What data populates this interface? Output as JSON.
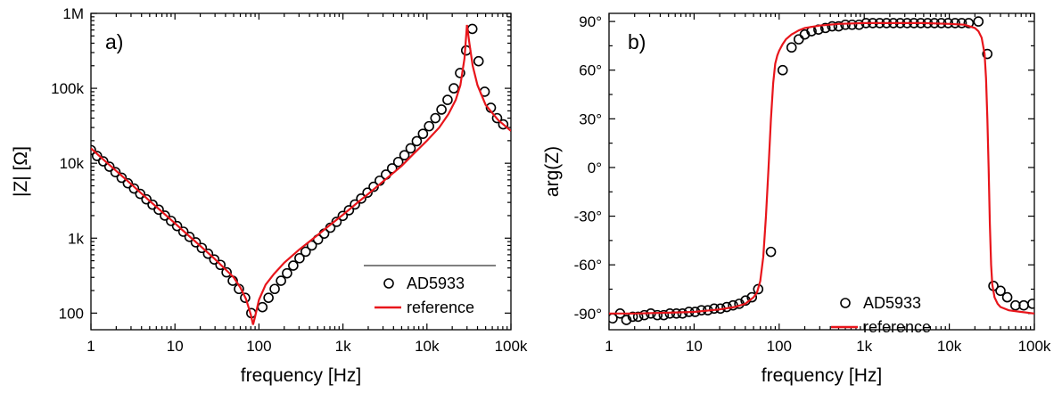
{
  "chart_data": [
    {
      "type": "scatter",
      "panel_label": "a)",
      "xlabel": "frequency [Hz]",
      "ylabel": "|Z| [Ω]",
      "x_scale": "log",
      "y_scale": "log",
      "xlim": [
        1,
        100000
      ],
      "ylim": [
        60,
        1000000
      ],
      "x_ticks": [
        {
          "value": 1,
          "label": "1"
        },
        {
          "value": 10,
          "label": "10"
        },
        {
          "value": 100,
          "label": "100"
        },
        {
          "value": 1000,
          "label": "1k"
        },
        {
          "value": 10000,
          "label": "10k"
        },
        {
          "value": 100000,
          "label": "100k"
        }
      ],
      "y_ticks": [
        {
          "value": 100,
          "label": "100"
        },
        {
          "value": 1000,
          "label": "1k"
        },
        {
          "value": 10000,
          "label": "10k"
        },
        {
          "value": 100000,
          "label": "100k"
        },
        {
          "value": 1000000,
          "label": "1M"
        }
      ],
      "grid": false,
      "legend_position": "bottom-right",
      "colors": {
        "markers": "#000000",
        "reference": "#e8151b"
      },
      "series": [
        {
          "name": "AD5933",
          "style": "open-circles",
          "x": [
            1.0,
            1.18,
            1.4,
            1.66,
            1.96,
            2.32,
            2.75,
            3.26,
            3.86,
            4.57,
            5.41,
            6.41,
            7.59,
            8.99,
            10.6,
            12.6,
            14.9,
            17.7,
            20.9,
            24.8,
            29.4,
            34.8,
            41.2,
            48.8,
            57.8,
            68.5,
            81.1,
            110,
            130,
            154,
            183,
            216,
            256,
            304,
            360,
            426,
            505,
            598,
            708,
            839,
            994,
            1180,
            1390,
            1650,
            1960,
            2320,
            2740,
            3250,
            3850,
            4560,
            5400,
            6390,
            7570,
            8970,
            10600,
            12600,
            14900,
            17600,
            20900,
            24800,
            29300,
            34700,
            41200,
            48700,
            57700,
            68400,
            81000
          ],
          "y": [
            15000,
            12500,
            10600,
            9000,
            7600,
            6400,
            5400,
            4600,
            3900,
            3300,
            2800,
            2400,
            2000,
            1700,
            1450,
            1220,
            1040,
            880,
            740,
            620,
            520,
            440,
            350,
            270,
            210,
            160,
            100,
            120,
            160,
            210,
            270,
            340,
            430,
            540,
            660,
            800,
            960,
            1150,
            1380,
            1650,
            1980,
            2360,
            2820,
            3380,
            4050,
            4850,
            5850,
            7050,
            8550,
            10400,
            12800,
            15800,
            19700,
            24700,
            31200,
            40000,
            52000,
            70000,
            100000,
            160000,
            320000,
            620000,
            230000,
            90000,
            55000,
            40000,
            33000
          ]
        },
        {
          "name": "reference",
          "style": "line",
          "x": [
            1,
            1.5,
            2,
            3,
            5,
            7,
            10,
            15,
            20,
            30,
            50,
            60,
            70,
            80,
            85,
            90,
            100,
            120,
            150,
            200,
            300,
            500,
            700,
            1000,
            1500,
            2000,
            3000,
            5000,
            7000,
            10000,
            14000,
            18000,
            22000,
            25000,
            28000,
            30000,
            32000,
            35000,
            40000,
            50000,
            70000,
            100000
          ],
          "y": [
            15800,
            10500,
            7900,
            5300,
            3150,
            2250,
            1580,
            1050,
            790,
            525,
            300,
            220,
            155,
            95,
            70,
            90,
            150,
            240,
            330,
            470,
            700,
            1100,
            1500,
            2050,
            3000,
            3900,
            5700,
            9200,
            13500,
            20000,
            30000,
            45000,
            70000,
            110000,
            250000,
            700000,
            400000,
            200000,
            110000,
            60000,
            38000,
            27000
          ]
        }
      ]
    },
    {
      "type": "scatter",
      "panel_label": "b)",
      "xlabel": "frequency [Hz]",
      "ylabel": "arg(Z)",
      "x_scale": "log",
      "y_scale": "linear",
      "xlim": [
        1,
        100000
      ],
      "ylim": [
        -100,
        95
      ],
      "x_ticks": [
        {
          "value": 1,
          "label": "1"
        },
        {
          "value": 10,
          "label": "10"
        },
        {
          "value": 100,
          "label": "100"
        },
        {
          "value": 1000,
          "label": "1k"
        },
        {
          "value": 10000,
          "label": "10k"
        },
        {
          "value": 100000,
          "label": "100k"
        }
      ],
      "y_ticks": [
        {
          "value": -90,
          "label": "-90°"
        },
        {
          "value": -60,
          "label": "-60°"
        },
        {
          "value": -30,
          "label": "-30°"
        },
        {
          "value": 0,
          "label": "0°"
        },
        {
          "value": 30,
          "label": "30°"
        },
        {
          "value": 60,
          "label": "60°"
        },
        {
          "value": 90,
          "label": "90°"
        }
      ],
      "grid": false,
      "legend_position": "bottom-right",
      "colors": {
        "markers": "#000000",
        "reference": "#e8151b"
      },
      "series": [
        {
          "name": "AD5933",
          "style": "open-circles",
          "x": [
            1.1,
            1.35,
            1.6,
            1.9,
            2.2,
            2.6,
            3.1,
            3.7,
            4.4,
            5.2,
            6.2,
            7.3,
            8.7,
            10.3,
            12.2,
            14.5,
            17.2,
            20.4,
            24.2,
            28.7,
            34.0,
            40.3,
            47.8,
            56.7,
            80,
            110,
            140,
            170,
            200,
            240,
            290,
            350,
            420,
            500,
            600,
            720,
            870,
            1050,
            1260,
            1520,
            1830,
            2200,
            2650,
            3190,
            3840,
            4620,
            5560,
            6690,
            8050,
            9690,
            11700,
            14000,
            16900,
            22000,
            28000,
            33000,
            40000,
            48000,
            60000,
            75000,
            95000
          ],
          "y": [
            -93,
            -90,
            -94,
            -92,
            -92,
            -91,
            -90,
            -91,
            -91,
            -90,
            -90,
            -90,
            -89,
            -89,
            -88,
            -88,
            -87,
            -87,
            -86,
            -85,
            -84,
            -82,
            -80,
            -75,
            -52,
            60,
            74,
            79,
            82,
            84,
            85,
            86,
            87,
            87,
            88,
            88,
            88,
            89,
            89,
            89,
            89,
            89,
            89,
            89,
            89,
            89,
            89,
            89,
            89,
            89,
            89,
            89,
            89,
            90,
            70,
            -73,
            -76,
            -80,
            -85,
            -85,
            -84
          ]
        },
        {
          "name": "reference",
          "style": "line",
          "x": [
            1,
            2,
            5,
            10,
            20,
            30,
            40,
            50,
            55,
            60,
            65,
            70,
            75,
            80,
            85,
            90,
            95,
            100,
            110,
            120,
            140,
            170,
            200,
            300,
            500,
            1000,
            2000,
            5000,
            10000,
            15000,
            20000,
            22000,
            24000,
            26000,
            27000,
            28000,
            29000,
            30000,
            31000,
            32000,
            34000,
            37000,
            40000,
            50000,
            70000,
            100000
          ],
          "y": [
            -90,
            -90,
            -89.5,
            -89,
            -87.5,
            -86,
            -84,
            -80,
            -77,
            -70,
            -55,
            -30,
            0,
            30,
            52,
            64,
            69,
            72,
            76,
            79,
            82,
            84.5,
            86,
            87.5,
            88.5,
            89,
            89,
            89,
            88.5,
            88,
            86,
            84,
            80,
            70,
            55,
            30,
            0,
            -35,
            -60,
            -72,
            -80,
            -84,
            -86,
            -88,
            -89,
            -90
          ]
        }
      ]
    }
  ]
}
